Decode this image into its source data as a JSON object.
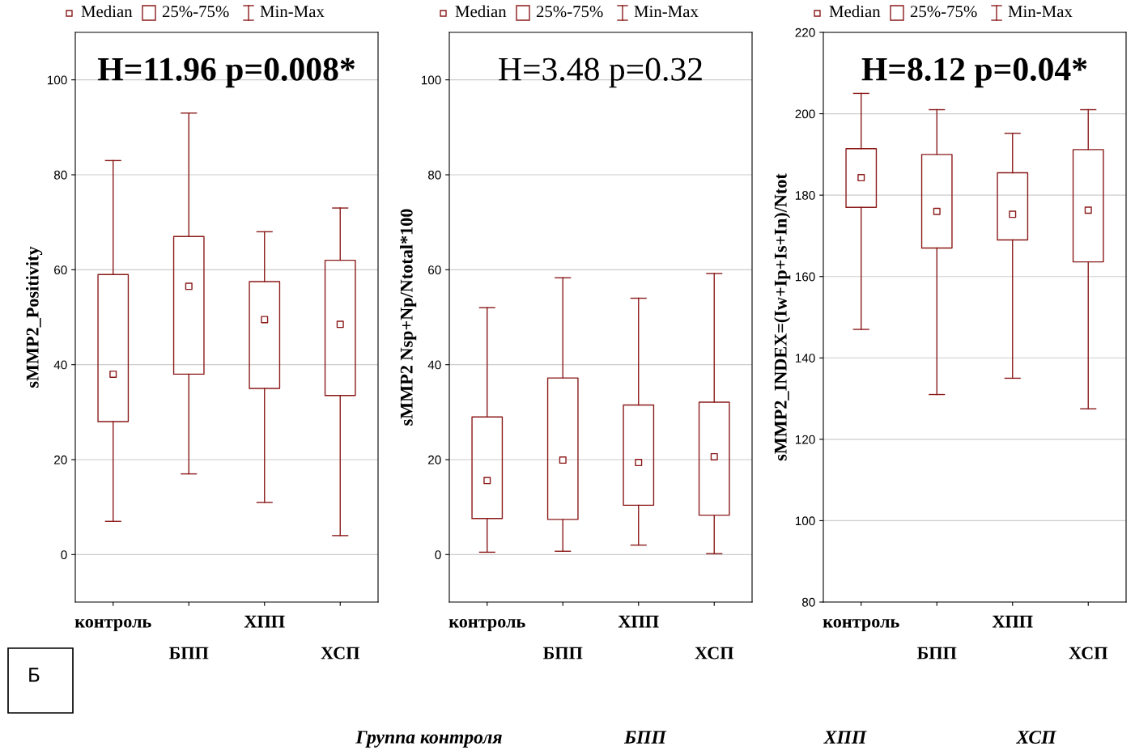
{
  "chart_data": [
    {
      "type": "box",
      "ylabel": "sMMP2_Positivity",
      "categories": [
        "контроль",
        "БПП",
        "ХПП",
        "ХСП"
      ],
      "color": "#8b1a1a",
      "ylim": [
        -10,
        110
      ],
      "yticks": [
        0,
        20,
        40,
        60,
        80,
        100
      ],
      "grid": "y",
      "marker": "square",
      "annotations": [
        "Median",
        "25%-75%",
        "Min-Max",
        "H=11.96 p=0.008*"
      ],
      "boxes": [
        {
          "low": 7,
          "q1": 28,
          "median": 38,
          "q3": 59,
          "high": 83
        },
        {
          "low": 17,
          "q1": 38,
          "median": 56.5,
          "q3": 67,
          "high": 93
        },
        {
          "low": 11,
          "q1": 35,
          "median": 49.5,
          "q3": 57.5,
          "high": 68
        },
        {
          "low": 4,
          "q1": 33.5,
          "median": 48.5,
          "q3": 62,
          "high": 73
        }
      ]
    },
    {
      "type": "box",
      "ylabel": "sMMP2 Nsp+Np/Ntotal*100",
      "categories": [
        "контроль",
        "БПП",
        "ХПП",
        "ХСП"
      ],
      "color": "#8b1a1a",
      "ylim": [
        -10,
        110
      ],
      "yticks": [
        0,
        20,
        40,
        60,
        80,
        100
      ],
      "grid": "y",
      "marker": "square",
      "annotations": [
        "Median",
        "25%-75%",
        "Min-Max",
        "H=3.48 p=0.32"
      ],
      "boxes": [
        {
          "low": 0.5,
          "q1": 7.6,
          "median": 15.6,
          "q3": 29,
          "high": 52
        },
        {
          "low": 0.7,
          "q1": 7.4,
          "median": 19.9,
          "q3": 37.2,
          "high": 58.3
        },
        {
          "low": 2,
          "q1": 10.4,
          "median": 19.4,
          "q3": 31.5,
          "high": 54
        },
        {
          "low": 0.2,
          "q1": 8.3,
          "median": 20.6,
          "q3": 32.1,
          "high": 59.2
        }
      ]
    },
    {
      "type": "box",
      "ylabel": "sMMP2_INDEX=(Iw+Ip+Is+In)/Ntot",
      "categories": [
        "контроль",
        "БПП",
        "ХПП",
        "ХСП"
      ],
      "color": "#8b1a1a",
      "ylim": [
        80,
        220
      ],
      "yticks": [
        80,
        100,
        120,
        140,
        160,
        180,
        200,
        220
      ],
      "grid": "y",
      "marker": "square",
      "annotations": [
        "Median",
        "25%-75%",
        "Min-Max",
        "H=8.12 p=0.04*"
      ],
      "boxes": [
        {
          "low": 147,
          "q1": 177,
          "median": 184.3,
          "q3": 191.4,
          "high": 205
        },
        {
          "low": 131,
          "q1": 167,
          "median": 176,
          "q3": 190,
          "high": 201
        },
        {
          "low": 135,
          "q1": 169,
          "median": 175.3,
          "q3": 185.5,
          "high": 195.2
        },
        {
          "low": 127.5,
          "q1": 163.6,
          "median": 176.3,
          "q3": 191.2,
          "high": 201
        }
      ]
    },
    {
      "type": "other",
      "annotations": [
        "Б",
        "Группа контроля",
        "БПП",
        "ХПП",
        "ХСП"
      ]
    }
  ]
}
